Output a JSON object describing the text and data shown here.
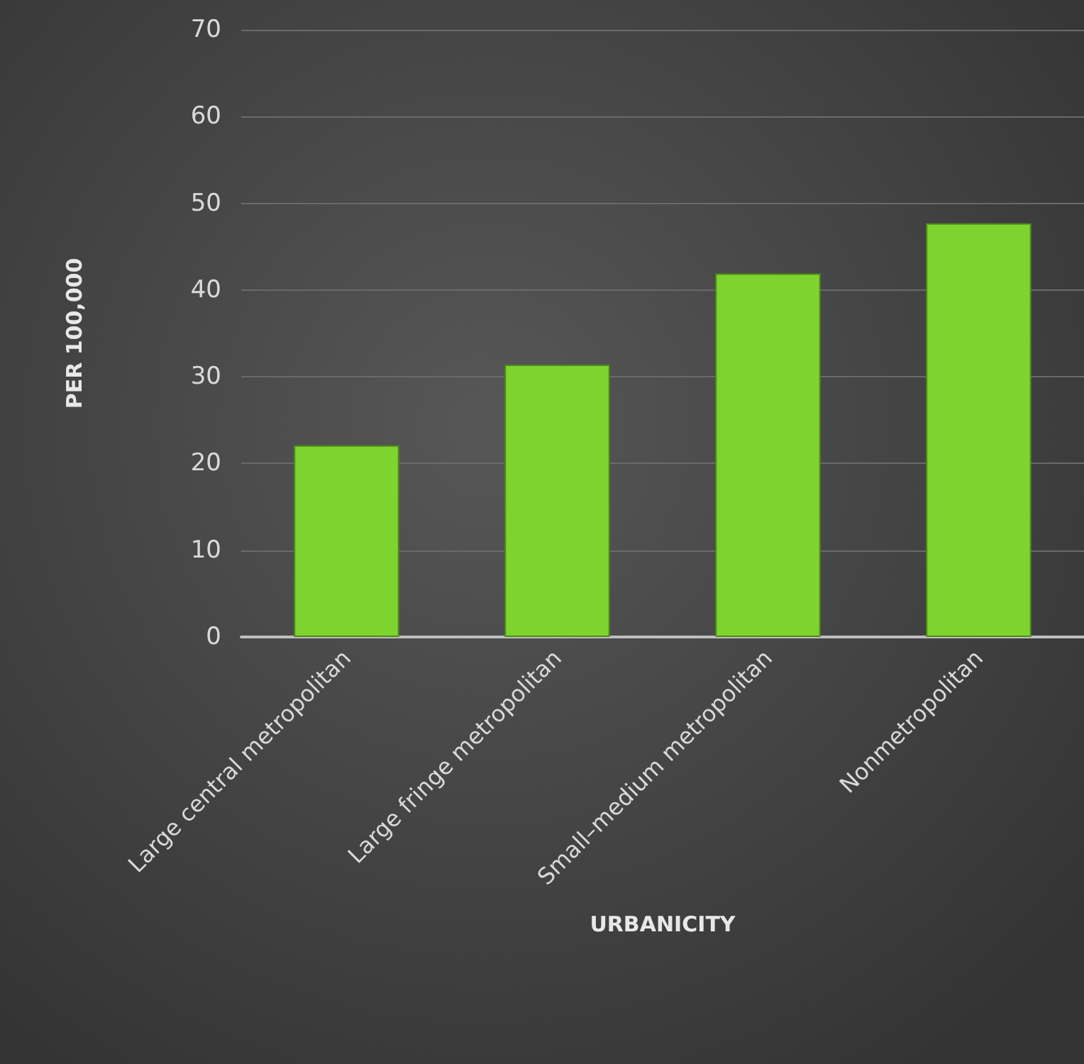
{
  "chart_data": {
    "type": "bar",
    "xlabel": "URBANICITY",
    "ylabel": "PER 100,000",
    "categories": [
      "Large central metropolitan",
      "Large fringe metropolitan",
      "Small–medium metropolitan",
      "Nonmetropolitan"
    ],
    "values": [
      22.1,
      31.4,
      41.9,
      47.7
    ],
    "color": "#7ed32f",
    "ylim": [
      0,
      70
    ],
    "yticks": [
      0,
      10,
      20,
      30,
      40,
      50,
      60,
      70
    ],
    "grid": "y"
  }
}
